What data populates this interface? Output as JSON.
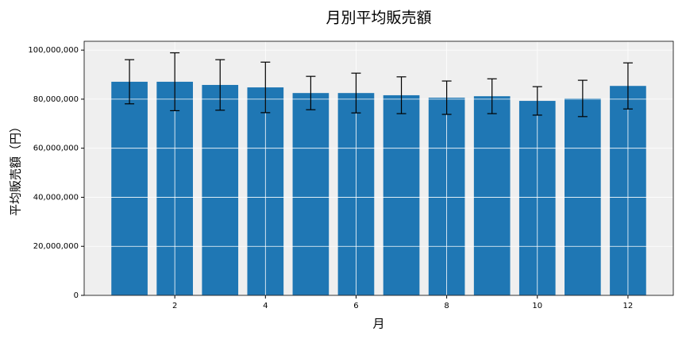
{
  "chart_data": {
    "type": "bar",
    "title": "月別平均販売額",
    "x_label": "月",
    "y_label": "平均販売額（円）",
    "x": [
      1,
      2,
      3,
      4,
      5,
      6,
      7,
      8,
      9,
      10,
      11,
      12
    ],
    "values": [
      87100000,
      87100000,
      85800000,
      84800000,
      82500000,
      82500000,
      81600000,
      80600000,
      81200000,
      79300000,
      80300000,
      85400000
    ],
    "errors": [
      9000000,
      11800000,
      10300000,
      10300000,
      6800000,
      8100000,
      7500000,
      6800000,
      7100000,
      5800000,
      7400000,
      9400000
    ],
    "color": "#1f77b4",
    "error_color": "#000000",
    "background": "#efefef",
    "xlim": [
      0,
      13
    ],
    "xticks": [
      2,
      4,
      6,
      8,
      10,
      12
    ],
    "ylim": [
      0,
      103600000
    ],
    "yticks": [
      0,
      {
        "value": 20000000,
        "label": "20,000,000"
      },
      {
        "value": 40000000,
        "label": "40,000,000"
      },
      {
        "value": 60000000,
        "label": "60,000,000"
      },
      {
        "value": 80000000,
        "label": "80,000,000"
      },
      {
        "value": 100000000,
        "label": "100,000,000"
      }
    ],
    "grid": true
  }
}
